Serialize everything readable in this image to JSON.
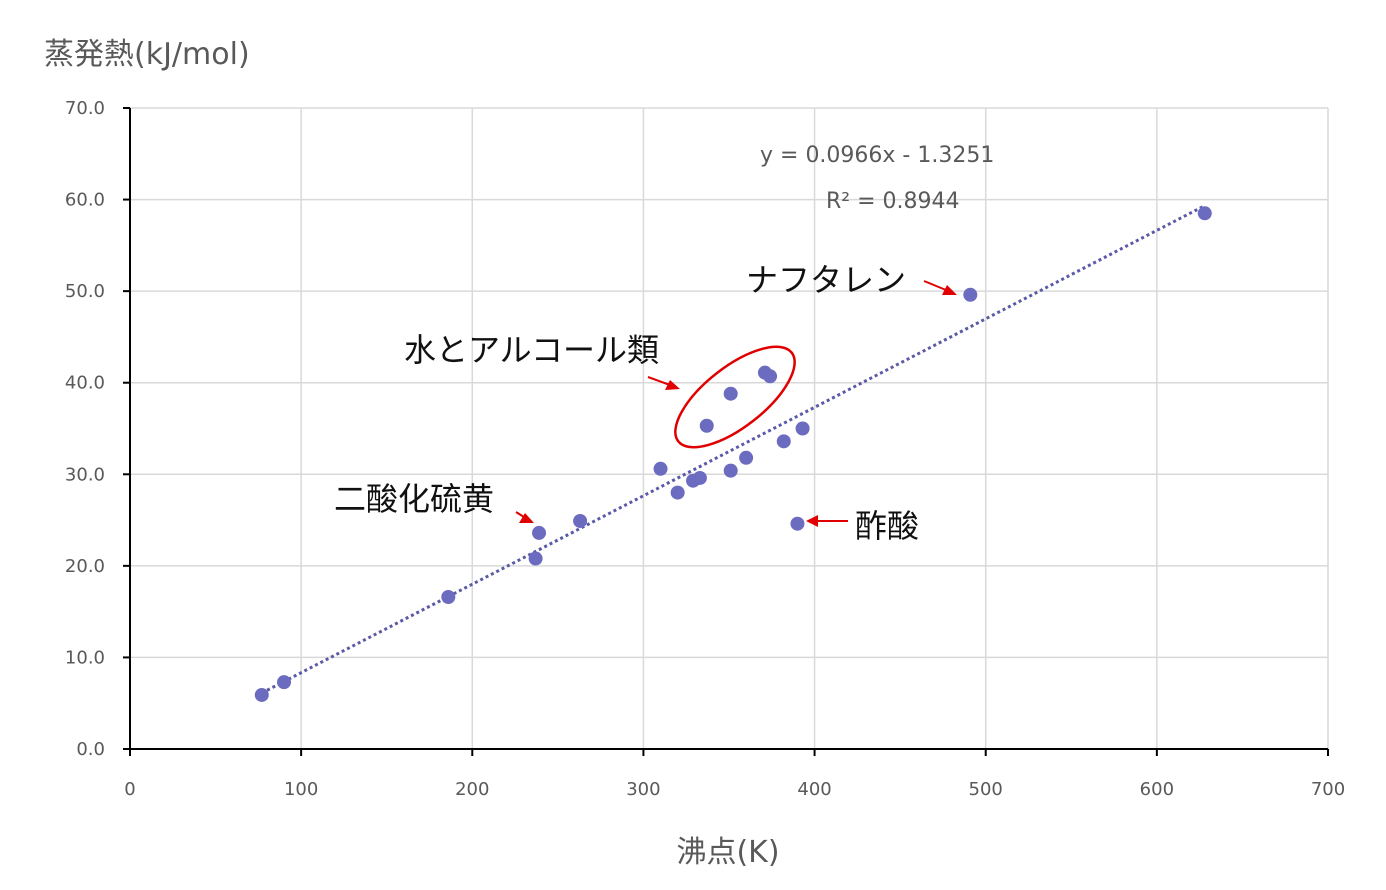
{
  "chart_data": {
    "type": "scatter",
    "ylabel": "蒸発熱(kJ/mol)",
    "xlabel": "沸点(K)",
    "xlim": [
      0,
      700
    ],
    "ylim": [
      0,
      70
    ],
    "x_ticks": [
      0,
      100,
      200,
      300,
      400,
      500,
      600,
      700
    ],
    "x_tick_labels": [
      "0",
      "100",
      "200",
      "300",
      "400",
      "500",
      "600",
      "700"
    ],
    "y_ticks": [
      0,
      10,
      20,
      30,
      40,
      50,
      60,
      70
    ],
    "y_tick_labels": [
      "0.0",
      "10.0",
      "20.0",
      "30.0",
      "40.0",
      "50.0",
      "60.0",
      "70.0"
    ],
    "grid": true,
    "series": [
      {
        "points": [
          {
            "x": 77,
            "y": 5.9
          },
          {
            "x": 90,
            "y": 7.3
          },
          {
            "x": 186,
            "y": 16.6
          },
          {
            "x": 237,
            "y": 20.8
          },
          {
            "x": 239,
            "y": 23.6
          },
          {
            "x": 263,
            "y": 24.9
          },
          {
            "x": 310,
            "y": 30.6
          },
          {
            "x": 320,
            "y": 28.0
          },
          {
            "x": 329,
            "y": 29.3
          },
          {
            "x": 333,
            "y": 29.6
          },
          {
            "x": 337,
            "y": 35.3
          },
          {
            "x": 351,
            "y": 38.8
          },
          {
            "x": 351,
            "y": 30.4
          },
          {
            "x": 360,
            "y": 31.8
          },
          {
            "x": 371,
            "y": 41.1
          },
          {
            "x": 374,
            "y": 40.7
          },
          {
            "x": 382,
            "y": 33.6
          },
          {
            "x": 390,
            "y": 24.6
          },
          {
            "x": 393,
            "y": 35.0
          },
          {
            "x": 491,
            "y": 49.6
          },
          {
            "x": 628,
            "y": 58.5
          }
        ],
        "color": "#6B6BBF"
      }
    ],
    "trendline": {
      "slope": 0.0966,
      "intercept": -1.3251,
      "x_range": [
        77,
        628
      ],
      "equation_text": "y = 0.0966x - 1.3251",
      "r2_text": "R² = 0.8944"
    },
    "annotations": [
      {
        "text": "ナフタレン"
      },
      {
        "text": "水とアルコール類"
      },
      {
        "text": "二酸化硫黄"
      },
      {
        "text": "酢酸"
      }
    ],
    "colors": {
      "point": "#6B6BBF",
      "trendline": "#5A5AA8",
      "highlight": "#E00000",
      "grid": "#D9D9D9",
      "axis": "#000000"
    }
  }
}
